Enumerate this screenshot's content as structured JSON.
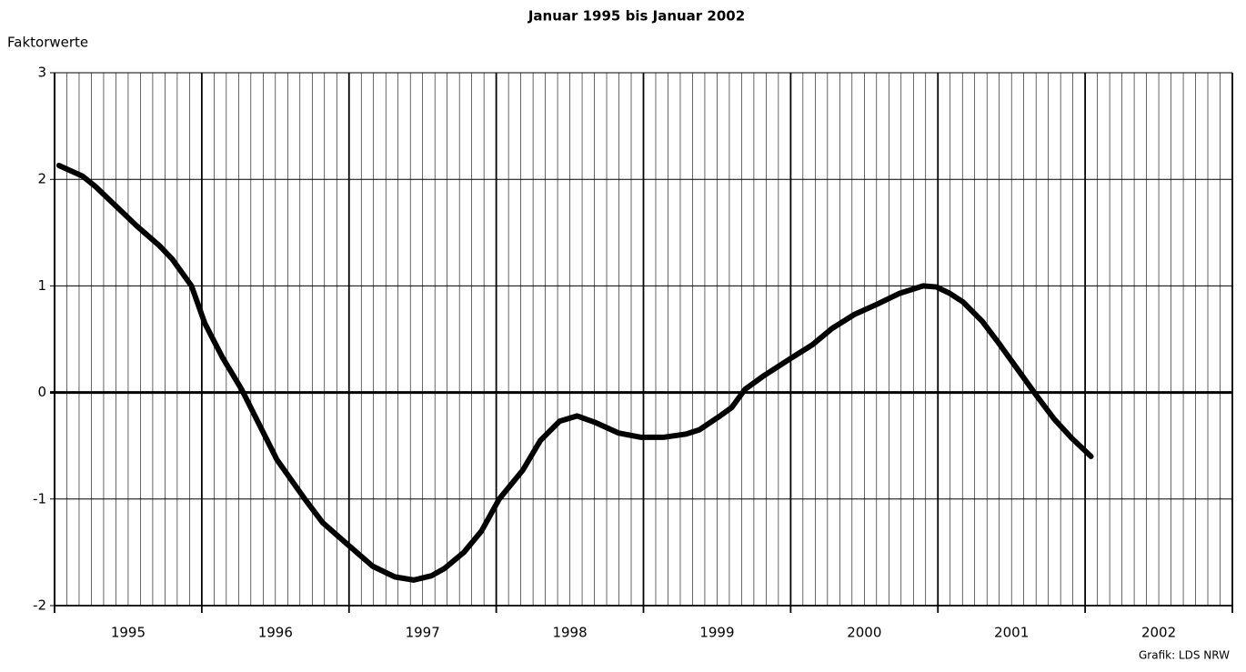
{
  "chart_data": {
    "type": "line",
    "title": "Januar 1995 bis Januar 2002",
    "y_label": "Faktorwerte",
    "source": "Grafik: LDS NRW",
    "x": [
      1995.03,
      1995.19,
      1995.28,
      1995.56,
      1995.71,
      1995.8,
      1995.93,
      1996.02,
      1996.14,
      1996.27,
      1996.39,
      1996.51,
      1996.7,
      1996.82,
      1997.01,
      1997.16,
      1997.31,
      1997.44,
      1997.56,
      1997.65,
      1997.78,
      1997.9,
      1998.02,
      1998.18,
      1998.3,
      1998.43,
      1998.55,
      1998.67,
      1998.83,
      1998.98,
      1999.14,
      1999.29,
      1999.38,
      1999.51,
      1999.6,
      1999.69,
      1999.81,
      2000.0,
      2000.15,
      2000.28,
      2000.43,
      2000.59,
      2000.74,
      2000.9,
      2000.99,
      2001.08,
      2001.17,
      2001.3,
      2001.42,
      2001.54,
      2001.67,
      2001.79,
      2001.91,
      2002.04
    ],
    "series": [
      {
        "color": "#000000",
        "values": [
          2.13,
          2.03,
          1.93,
          1.56,
          1.38,
          1.25,
          1.0,
          0.65,
          0.33,
          0.03,
          -0.3,
          -0.63,
          -1.0,
          -1.22,
          -1.45,
          -1.63,
          -1.73,
          -1.76,
          -1.72,
          -1.65,
          -1.5,
          -1.3,
          -1.0,
          -0.73,
          -0.45,
          -0.27,
          -0.22,
          -0.28,
          -0.38,
          -0.42,
          -0.42,
          -0.39,
          -0.35,
          -0.23,
          -0.14,
          0.03,
          0.15,
          0.32,
          0.45,
          0.6,
          0.73,
          0.83,
          0.93,
          1.0,
          0.99,
          0.93,
          0.85,
          0.67,
          0.45,
          0.22,
          -0.03,
          -0.25,
          -0.43,
          -0.6
        ]
      }
    ],
    "xlim": [
      1995,
      2003
    ],
    "xgrid_major": [
      1995,
      1996,
      1997,
      1998,
      1999,
      2000,
      2001,
      2002,
      2003
    ],
    "minor_grid_divisions": 12,
    "xticks": [
      {
        "value": 1995.5,
        "label": "1995"
      },
      {
        "value": 1996.5,
        "label": "1996"
      },
      {
        "value": 1997.5,
        "label": "1997"
      },
      {
        "value": 1998.5,
        "label": "1998"
      },
      {
        "value": 1999.5,
        "label": "1999"
      },
      {
        "value": 2000.5,
        "label": "2000"
      },
      {
        "value": 2001.5,
        "label": "2001"
      },
      {
        "value": 2002.5,
        "label": "2002"
      }
    ],
    "ylim": [
      -2,
      3
    ],
    "yticks": [
      -2,
      -1,
      0,
      1,
      2,
      3
    ],
    "grid": true
  }
}
